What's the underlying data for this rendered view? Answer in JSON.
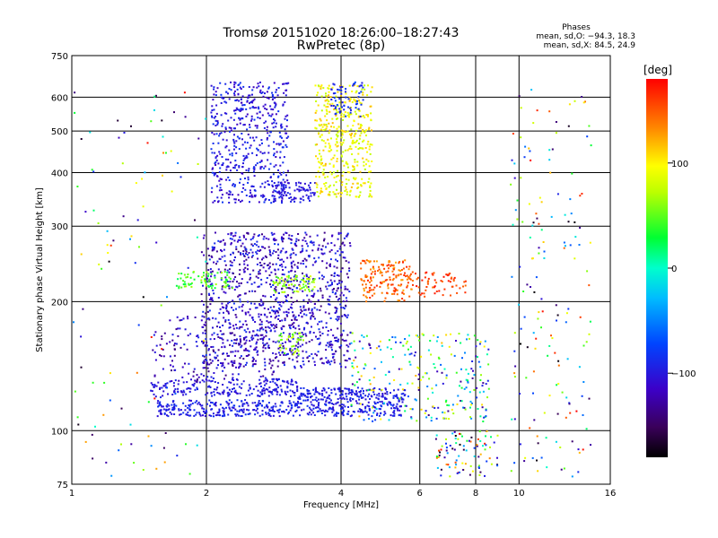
{
  "chart_data": {
    "type": "scatter",
    "title": "Tromsø 20151020 18:26:00–18:27:43",
    "subtitle": "RwPretec (8p)",
    "xlabel": "Frequency [MHz]",
    "ylabel": "Stationary phase Virtual Height [km]",
    "x_scale": "log",
    "y_scale": "log",
    "xlim": [
      1,
      16
    ],
    "ylim": [
      75,
      750
    ],
    "x_ticks": [
      "1",
      "2",
      "4",
      "6",
      "8",
      "10",
      "16"
    ],
    "y_ticks": [
      "75",
      "100",
      "200",
      "300",
      "400",
      "500",
      "600",
      "750"
    ],
    "grid": true,
    "info_title": "Phases",
    "info_line1": "mean, sd,O: −94.3, 18.3",
    "info_line2": "mean, sd,X:  84.5, 24.9",
    "colorbar": {
      "label": "[deg]",
      "range": [
        -180,
        180
      ],
      "ticks": [
        "100",
        "0",
        "−100"
      ],
      "colormap": "rainbow"
    },
    "clusters": [
      {
        "f": [
          2.05,
          3.05
        ],
        "h": [
          340,
          650
        ],
        "phase": [
          -120,
          -80
        ],
        "n": 520
      },
      {
        "f": [
          2.8,
          3.5
        ],
        "h": [
          340,
          380
        ],
        "phase": [
          -110,
          -90
        ],
        "n": 90
      },
      {
        "f": [
          3.5,
          4.7
        ],
        "h": [
          350,
          640
        ],
        "phase": [
          70,
          120
        ],
        "n": 420
      },
      {
        "f": [
          3.8,
          4.5
        ],
        "h": [
          540,
          650
        ],
        "phase": [
          -100,
          -70
        ],
        "n": 60
      },
      {
        "f": [
          1.95,
          4.2
        ],
        "h": [
          140,
          290
        ],
        "phase": [
          -140,
          -80
        ],
        "n": 1100
      },
      {
        "f": [
          1.7,
          2.3
        ],
        "h": [
          215,
          235
        ],
        "phase": [
          20,
          70
        ],
        "n": 70
      },
      {
        "f": [
          2.8,
          3.5
        ],
        "h": [
          210,
          230
        ],
        "phase": [
          40,
          90
        ],
        "n": 70
      },
      {
        "f": [
          4.4,
          5.8
        ],
        "h": [
          200,
          250
        ],
        "phase": [
          120,
          170
        ],
        "n": 170
      },
      {
        "f": [
          5.8,
          7.6
        ],
        "h": [
          205,
          235
        ],
        "phase": [
          140,
          175
        ],
        "n": 60
      },
      {
        "f": [
          1.55,
          5.5
        ],
        "h": [
          108,
          118
        ],
        "phase": [
          -110,
          -80
        ],
        "n": 460
      },
      {
        "f": [
          1.5,
          3.2
        ],
        "h": [
          120,
          132
        ],
        "phase": [
          -110,
          -90
        ],
        "n": 220
      },
      {
        "f": [
          3.2,
          5.6
        ],
        "h": [
          118,
          126
        ],
        "phase": [
          -105,
          -85
        ],
        "n": 180
      },
      {
        "f": [
          1.5,
          3.0
        ],
        "h": [
          130,
          185
        ],
        "phase": [
          -140,
          -90
        ],
        "n": 200
      },
      {
        "f": [
          4.2,
          8.6
        ],
        "h": [
          105,
          170
        ],
        "phase": [
          -140,
          120
        ],
        "n": 260
      },
      {
        "f": [
          2.9,
          3.3
        ],
        "h": [
          150,
          170
        ],
        "phase": [
          40,
          80
        ],
        "n": 40
      },
      {
        "f": [
          6.5,
          9.0
        ],
        "h": [
          78,
          100
        ],
        "phase": [
          -180,
          180
        ],
        "n": 90
      },
      {
        "f": [
          9.5,
          14.5
        ],
        "h": [
          78,
          650
        ],
        "phase": [
          -180,
          180
        ],
        "n": 170
      },
      {
        "f": [
          1.0,
          2.0
        ],
        "h": [
          78,
          650
        ],
        "phase": [
          -180,
          180
        ],
        "n": 110
      }
    ]
  }
}
